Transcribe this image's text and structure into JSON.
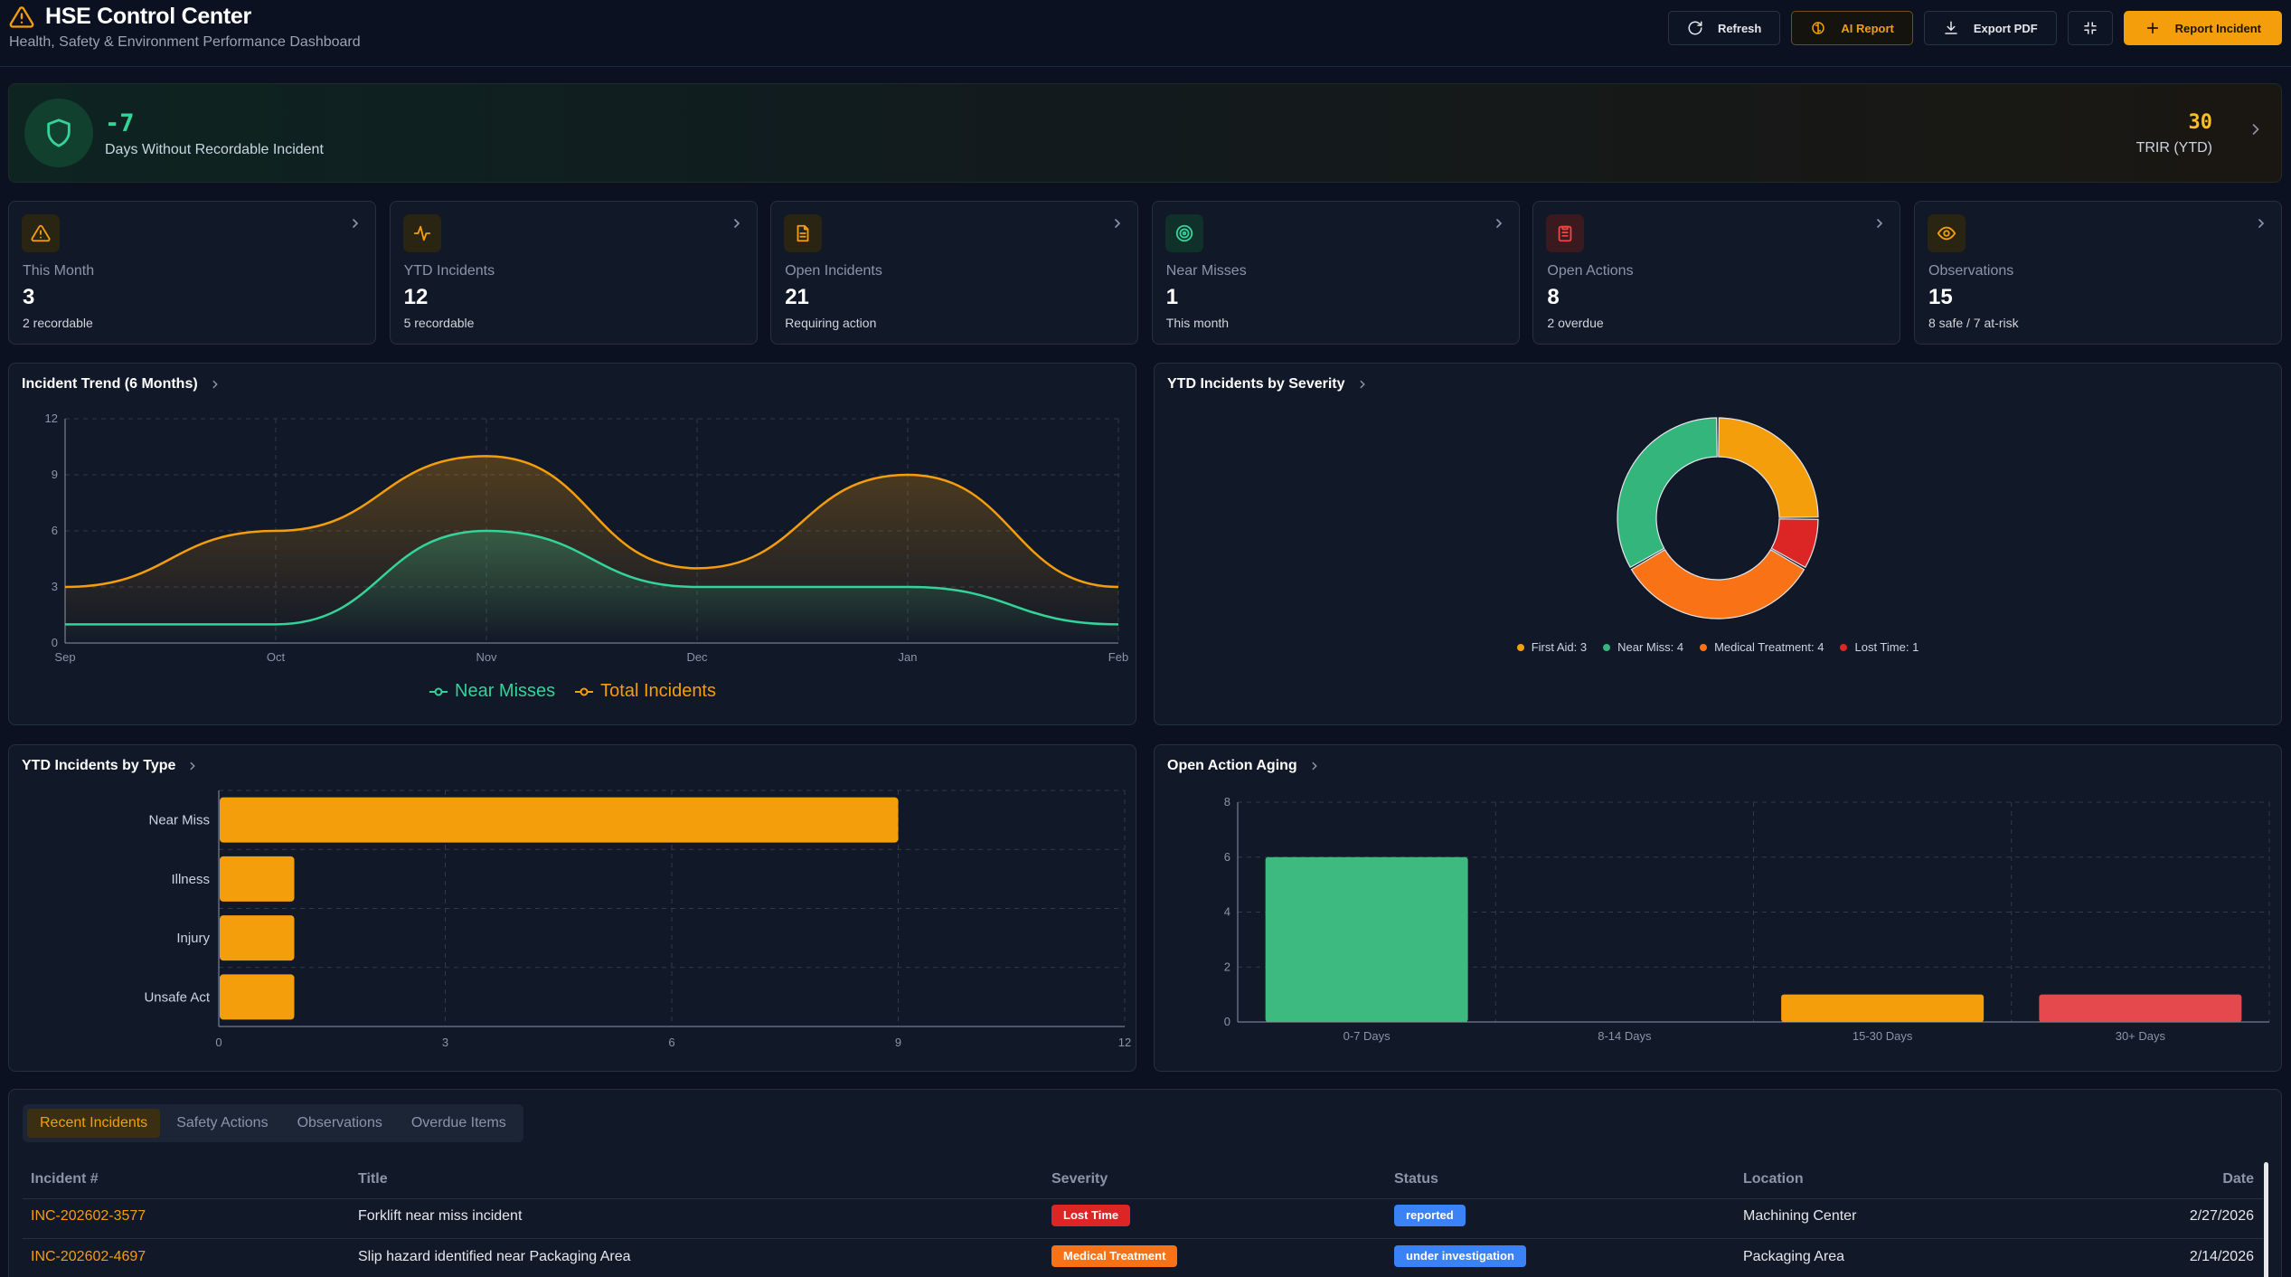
{
  "header": {
    "title": "HSE Control Center",
    "subtitle": "Health, Safety & Environment Performance Dashboard",
    "buttons": {
      "refresh": "Refresh",
      "ai_report": "AI Report",
      "export_pdf": "Export PDF",
      "report_incident": "Report Incident"
    }
  },
  "banner": {
    "days_value": "-7",
    "days_label": "Days Without Recordable Incident",
    "trir_value": "30",
    "trir_label": "TRIR (YTD)"
  },
  "kpis": [
    {
      "label": "This Month",
      "value": "3",
      "sub": "2 recordable",
      "icon": "warning-icon",
      "color": "#f59e0b"
    },
    {
      "label": "YTD Incidents",
      "value": "12",
      "sub": "5 recordable",
      "icon": "activity-icon",
      "color": "#f59e0b"
    },
    {
      "label": "Open Incidents",
      "value": "21",
      "sub": "Requiring action",
      "icon": "document-icon",
      "color": "#f59e0b"
    },
    {
      "label": "Near Misses",
      "value": "1",
      "sub": "This month",
      "icon": "target-icon",
      "color": "#34d399"
    },
    {
      "label": "Open Actions",
      "value": "8",
      "sub": "2 overdue",
      "icon": "clipboard-icon",
      "color": "#ef4444"
    },
    {
      "label": "Observations",
      "value": "15",
      "sub": "8 safe / 7 at-risk",
      "icon": "eye-icon",
      "color": "#f59e0b"
    }
  ],
  "panels": {
    "trend_title": "Incident Trend (6 Months)",
    "severity_title": "YTD Incidents by Severity",
    "type_title": "YTD Incidents by Type",
    "aging_title": "Open Action Aging"
  },
  "chart_data": [
    {
      "type": "area",
      "title": "Incident Trend (6 Months)",
      "categories": [
        "Sep",
        "Oct",
        "Nov",
        "Dec",
        "Jan",
        "Feb"
      ],
      "ylim": [
        0,
        12
      ],
      "yticks": [
        0,
        3,
        6,
        9,
        12
      ],
      "series": [
        {
          "name": "Near Misses",
          "values": [
            1,
            1,
            6,
            3,
            3,
            1
          ],
          "color": "#34d399"
        },
        {
          "name": "Total Incidents",
          "values": [
            3,
            6,
            10,
            4,
            9,
            3
          ],
          "color": "#f59e0b"
        }
      ],
      "legend": "bottom-center",
      "grid": true
    },
    {
      "type": "pie",
      "title": "YTD Incidents by Severity",
      "donut": true,
      "slices": [
        {
          "name": "First Aid",
          "value": 3,
          "color": "#f59e0b"
        },
        {
          "name": "Lost Time",
          "value": 1,
          "color": "#dc2626"
        },
        {
          "name": "Medical Treatment",
          "value": 4,
          "color": "#f97316"
        },
        {
          "name": "Near Miss",
          "value": 4,
          "color": "#34b57c"
        }
      ],
      "legend_order": [
        {
          "label": "First Aid: 3",
          "color": "#f59e0b"
        },
        {
          "label": "Near Miss: 4",
          "color": "#34b57c"
        },
        {
          "label": "Medical Treatment: 4",
          "color": "#f97316"
        },
        {
          "label": "Lost Time: 1",
          "color": "#dc2626"
        }
      ],
      "legend": "bottom-center"
    },
    {
      "type": "bar",
      "orientation": "horizontal",
      "title": "YTD Incidents by Type",
      "categories": [
        "Near Miss",
        "Illness",
        "Injury",
        "Unsafe Act"
      ],
      "values": [
        9,
        1,
        1,
        1
      ],
      "xlim": [
        0,
        12
      ],
      "xticks": [
        0,
        3,
        6,
        9,
        12
      ],
      "color": "#f59e0b",
      "grid": true
    },
    {
      "type": "bar",
      "title": "Open Action Aging",
      "categories": [
        "0-7 Days",
        "8-14 Days",
        "15-30 Days",
        "30+ Days"
      ],
      "values": [
        6,
        0,
        1,
        1
      ],
      "colors": [
        "#3dba7f",
        "#3dba7f",
        "#f59e0b",
        "#e5484d"
      ],
      "ylim": [
        0,
        8
      ],
      "yticks": [
        0,
        2,
        4,
        6,
        8
      ],
      "grid": true
    }
  ],
  "table": {
    "tabs": [
      "Recent Incidents",
      "Safety Actions",
      "Observations",
      "Overdue Items"
    ],
    "active_tab": 0,
    "columns": [
      "Incident #",
      "Title",
      "Severity",
      "Status",
      "Location",
      "Date"
    ],
    "rows": [
      {
        "id": "INC-202602-3577",
        "title": "Forklift near miss incident",
        "severity": "Lost Time",
        "severity_color": "#dc2626",
        "status": "reported",
        "status_color": "#3b82f6",
        "location": "Machining Center",
        "date": "2/27/2026"
      },
      {
        "id": "INC-202602-4697",
        "title": "Slip hazard identified near Packaging Area",
        "severity": "Medical Treatment",
        "severity_color": "#f97316",
        "status": "under investigation",
        "status_color": "#3b82f6",
        "location": "Packaging Area",
        "date": "2/14/2026"
      }
    ]
  }
}
